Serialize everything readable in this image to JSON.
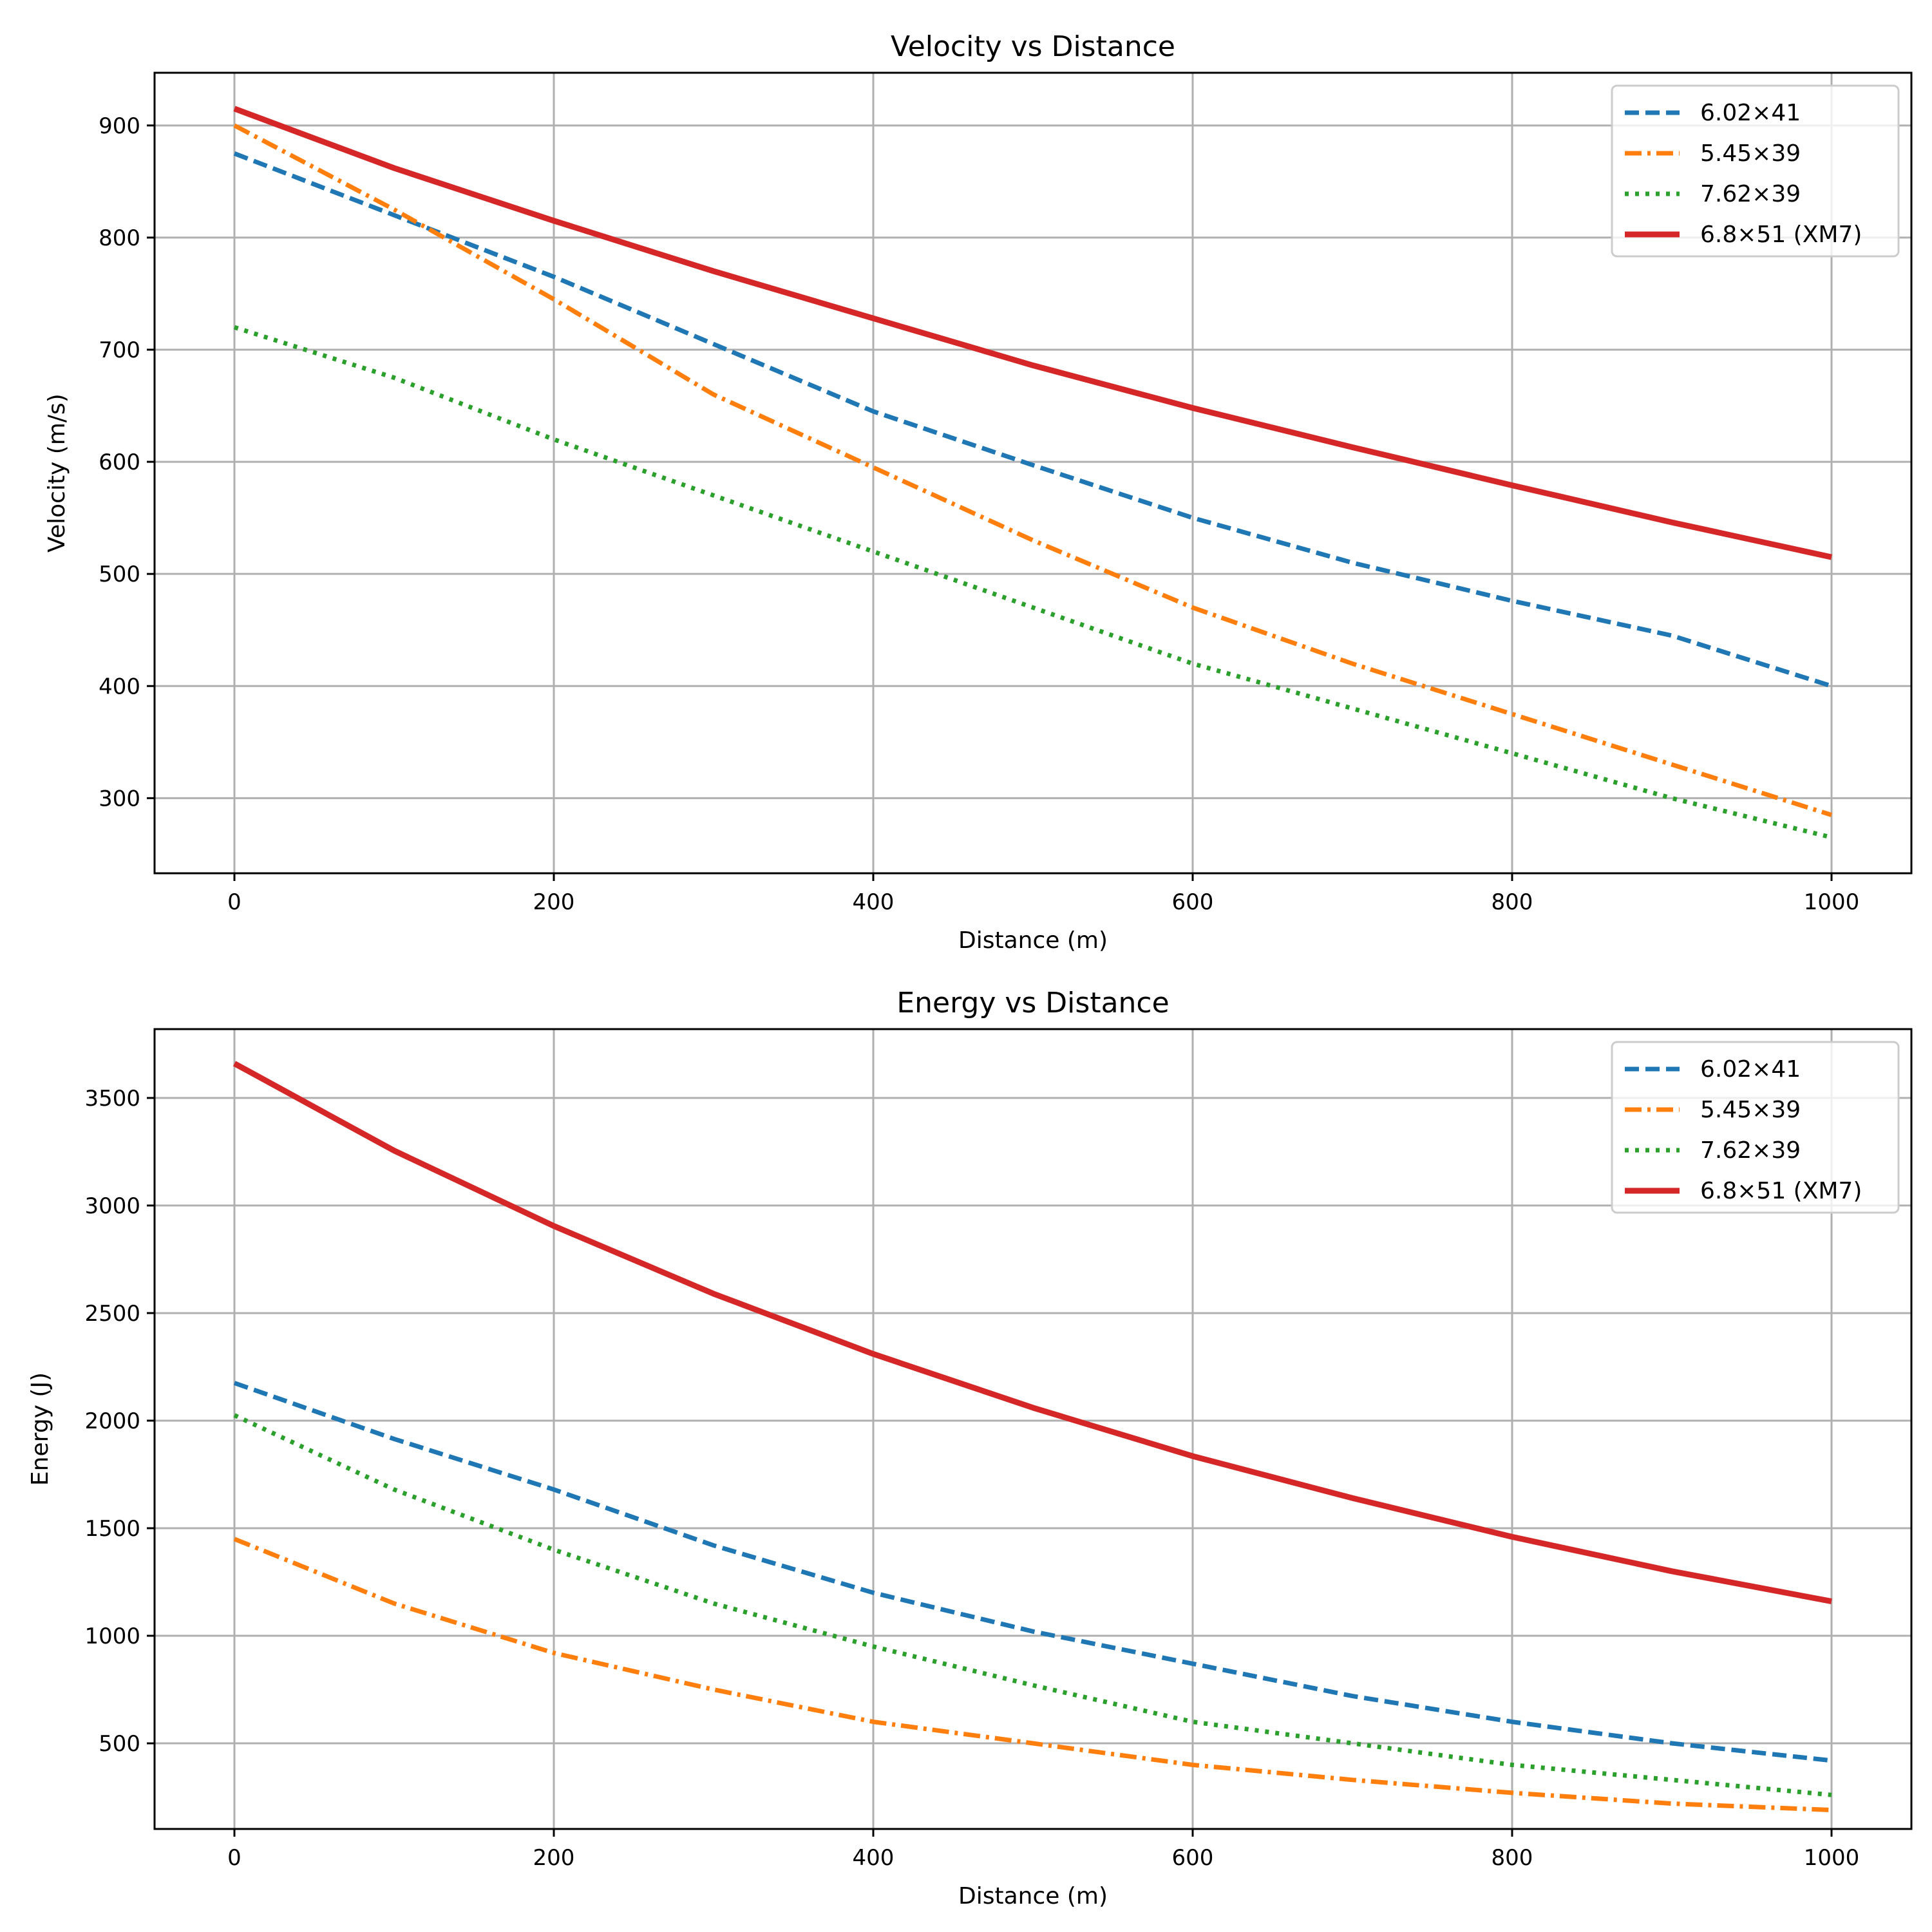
{
  "chart_data": [
    {
      "type": "line",
      "title": "Velocity vs Distance",
      "xlabel": "Distance (m)",
      "ylabel": "Velocity (m/s)",
      "xlim": [
        -50,
        1050
      ],
      "ylim": [
        233,
        947
      ],
      "xticks": [
        0,
        200,
        400,
        600,
        800,
        1000
      ],
      "yticks": [
        300,
        400,
        500,
        600,
        700,
        800,
        900
      ],
      "grid": true,
      "legend_position": "top-right",
      "x": [
        0,
        100,
        200,
        300,
        400,
        500,
        600,
        700,
        800,
        900,
        1000
      ],
      "series": [
        {
          "name": "6.02×41",
          "color": "#1f77b4",
          "style": "dashed",
          "values": [
            875,
            820,
            765,
            705,
            645,
            597,
            550,
            510,
            476,
            445,
            400
          ]
        },
        {
          "name": "5.45×39",
          "color": "#ff7f0e",
          "style": "dashdot",
          "values": [
            900,
            825,
            745,
            660,
            595,
            530,
            470,
            420,
            375,
            330,
            285
          ]
        },
        {
          "name": "7.62×39",
          "color": "#2ca02c",
          "style": "dotted",
          "values": [
            720,
            675,
            620,
            570,
            520,
            470,
            420,
            380,
            340,
            300,
            265
          ]
        },
        {
          "name": "6.8×51 (XM7)",
          "color": "#d62728",
          "style": "solid",
          "values": [
            915,
            862,
            815,
            770,
            728,
            686,
            648,
            613,
            579,
            546,
            515
          ]
        }
      ]
    },
    {
      "type": "line",
      "title": "Energy vs Distance",
      "xlabel": "Distance (m)",
      "ylabel": "Energy (J)",
      "xlim": [
        -50,
        1050
      ],
      "ylim": [
        102,
        3820
      ],
      "xticks": [
        0,
        200,
        400,
        600,
        800,
        1000
      ],
      "yticks": [
        500,
        1000,
        1500,
        2000,
        2500,
        3000,
        3500
      ],
      "grid": true,
      "legend_position": "top-right",
      "x": [
        0,
        100,
        200,
        300,
        400,
        500,
        600,
        700,
        800,
        900,
        1000
      ],
      "series": [
        {
          "name": "6.02×41",
          "color": "#1f77b4",
          "style": "dashed",
          "values": [
            2175,
            1915,
            1680,
            1420,
            1200,
            1020,
            870,
            720,
            600,
            500,
            420
          ]
        },
        {
          "name": "5.45×39",
          "color": "#ff7f0e",
          "style": "dashdot",
          "values": [
            1450,
            1150,
            920,
            750,
            600,
            500,
            400,
            330,
            270,
            220,
            190
          ]
        },
        {
          "name": "7.62×39",
          "color": "#2ca02c",
          "style": "dotted",
          "values": [
            2025,
            1680,
            1400,
            1150,
            950,
            770,
            600,
            500,
            400,
            330,
            260
          ]
        },
        {
          "name": "6.8×51 (XM7)",
          "color": "#d62728",
          "style": "solid",
          "values": [
            3660,
            3255,
            2905,
            2590,
            2310,
            2060,
            1835,
            1640,
            1460,
            1300,
            1160
          ]
        }
      ]
    }
  ]
}
